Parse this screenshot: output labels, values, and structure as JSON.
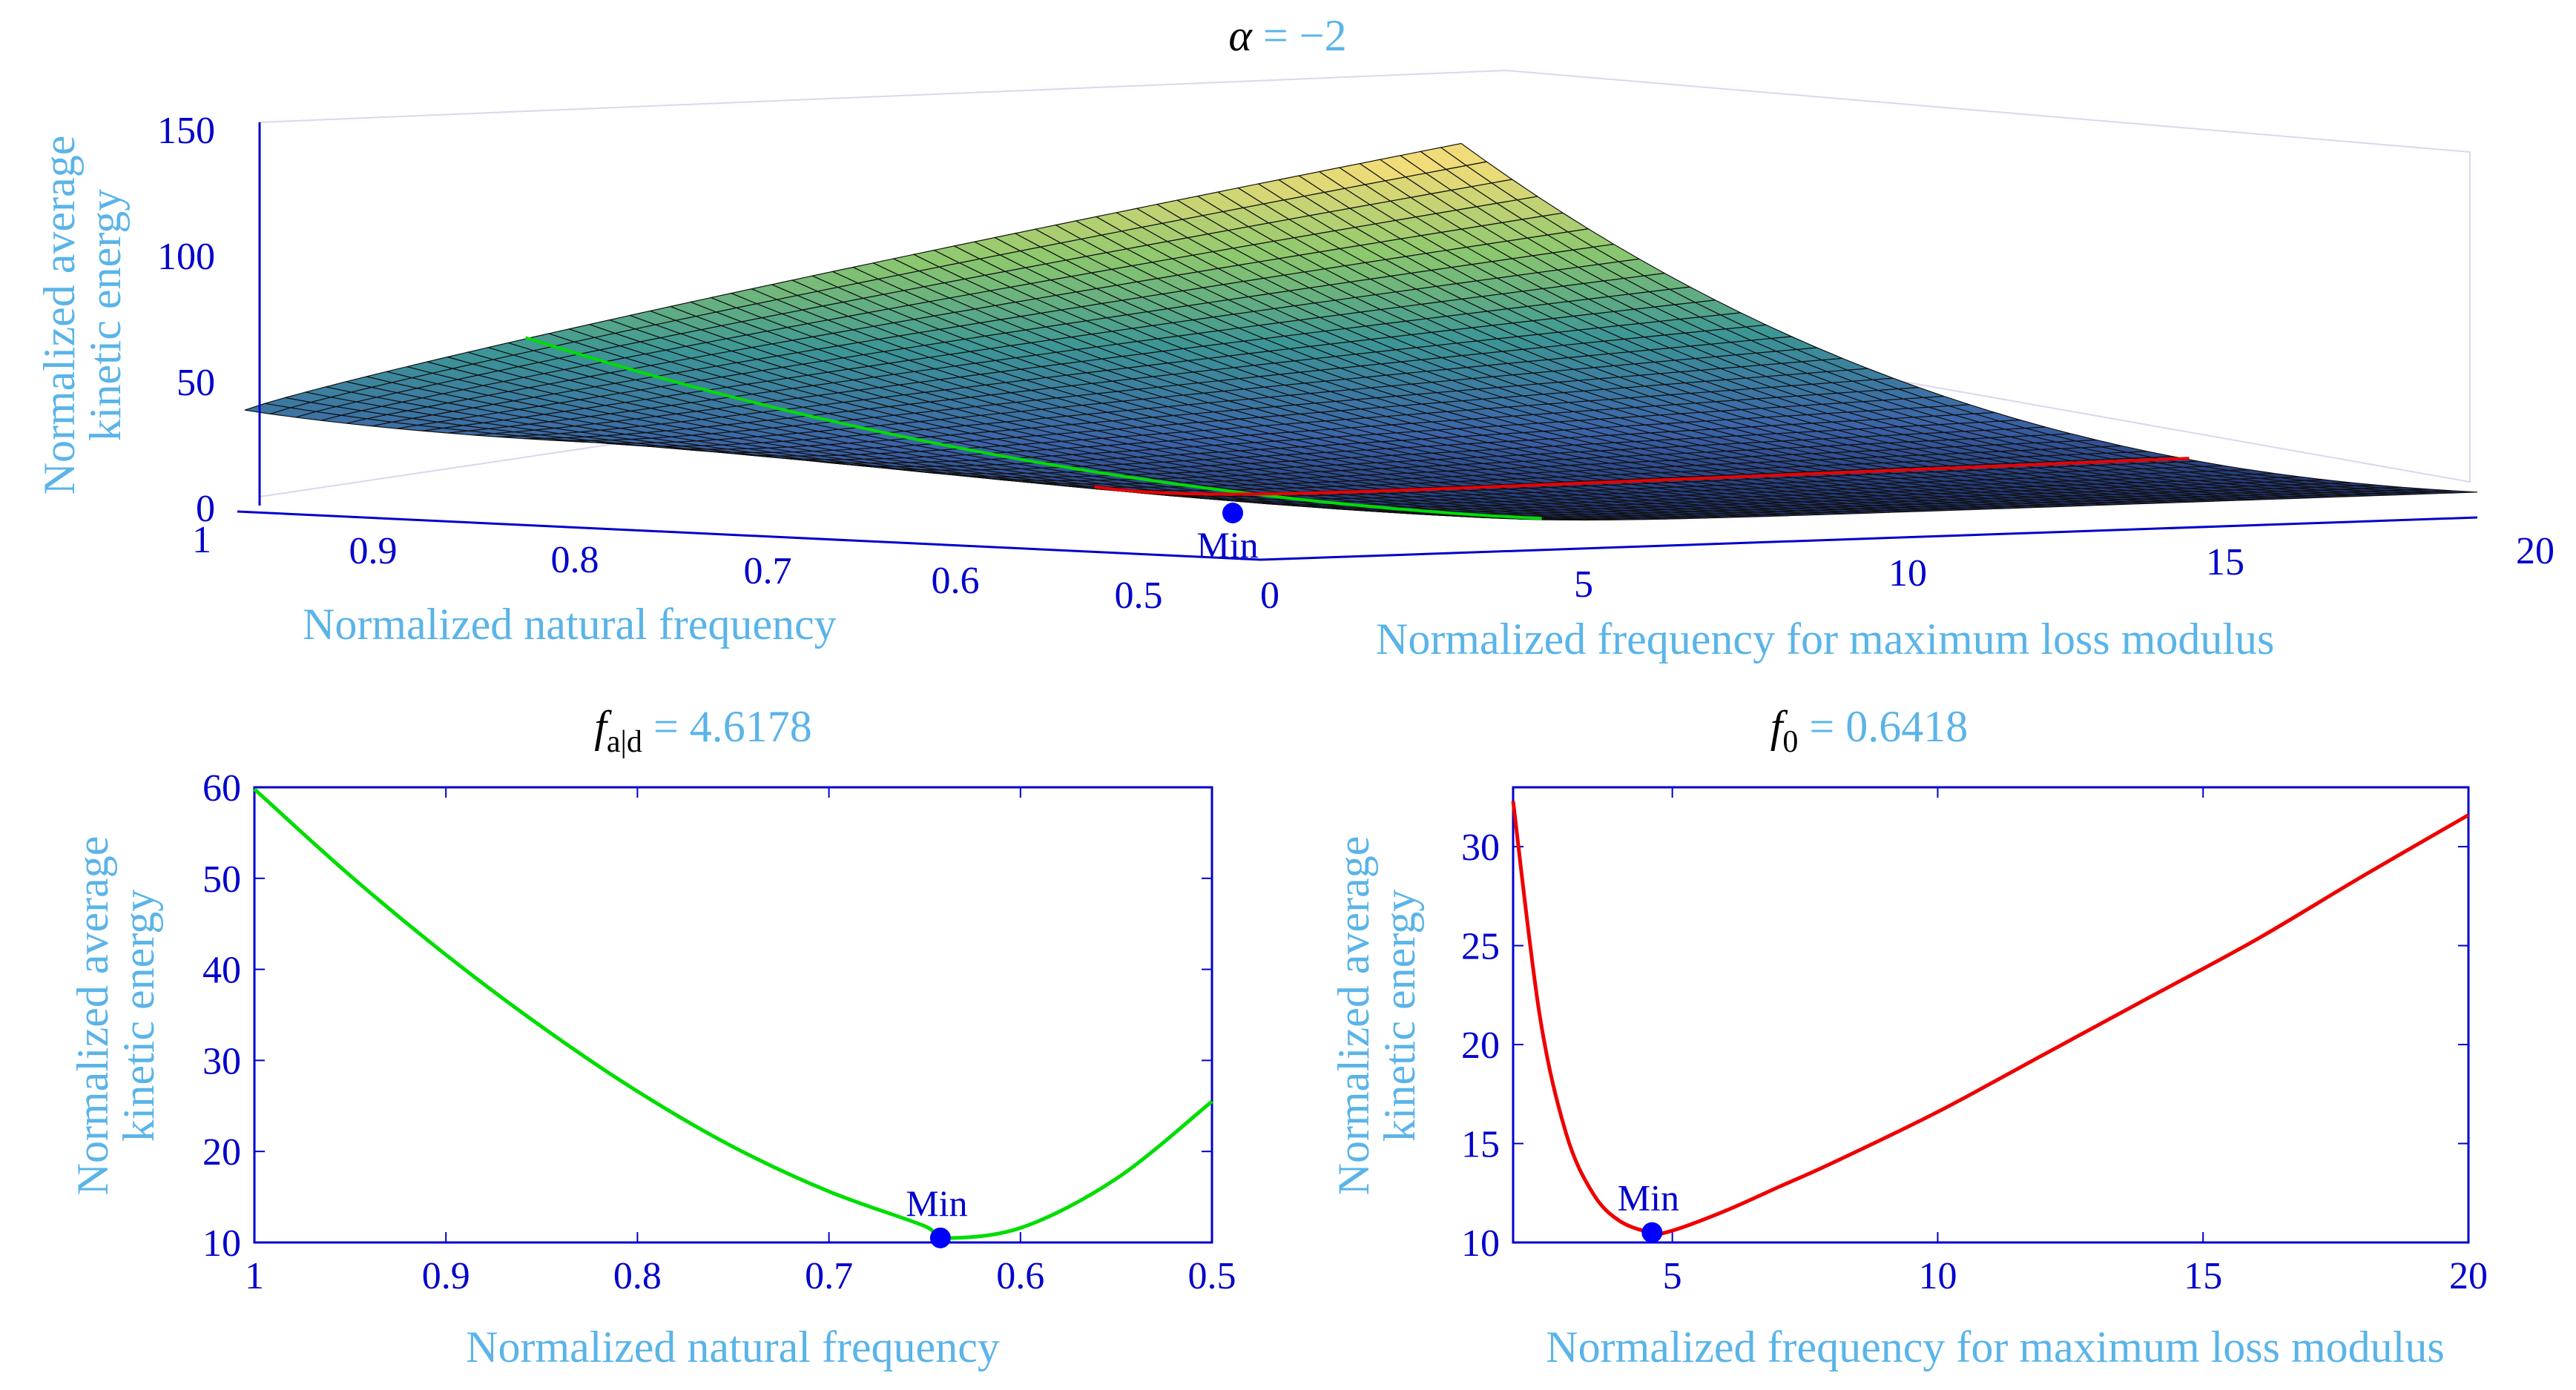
{
  "colors": {
    "axis": "#0000cc",
    "label": "#5ab4e8",
    "title": "#000000",
    "green": "#00dd00",
    "red": "#ee0000",
    "marker": "#0000ff",
    "grid": "#d8d8ee"
  },
  "chart_data": [
    {
      "type": "surface",
      "title_symbol": "α",
      "title_value": " = −2",
      "zlabel_line1": "Normalized average",
      "zlabel_line2": "kinetic energy",
      "xlabel": "Normalized natural frequency",
      "ylabel": "Normalized frequency for maximum loss modulus",
      "zlim": [
        0,
        150
      ],
      "z_ticks": [
        "0",
        "50",
        "100",
        "150"
      ],
      "x_range": [
        1,
        0.5
      ],
      "x_ticks": [
        "1",
        "0.9",
        "0.8",
        "0.7",
        "0.6",
        "0.5"
      ],
      "y_range": [
        0,
        20
      ],
      "y_ticks": [
        "0",
        "5",
        "10",
        "15",
        "20"
      ],
      "min_label": "Min",
      "min_point": {
        "f0": 0.6418,
        "fad": 4.6178,
        "z": 10.5
      }
    },
    {
      "type": "line",
      "title_symbol": "f",
      "title_sub": "a|d",
      "title_value": " = 4.6178",
      "xlabel": "Normalized natural frequency",
      "ylabel_line1": "Normalized average",
      "ylabel_line2": "kinetic energy",
      "xlim": [
        1,
        0.5
      ],
      "ylim": [
        10,
        60
      ],
      "x_ticks": [
        "1",
        "0.9",
        "0.8",
        "0.7",
        "0.6",
        "0.5"
      ],
      "y_ticks": [
        "10",
        "20",
        "30",
        "40",
        "50",
        "60"
      ],
      "series": [
        {
          "name": "green",
          "x": [
            1.0,
            0.95,
            0.9,
            0.85,
            0.8,
            0.75,
            0.7,
            0.65,
            0.6418,
            0.6,
            0.55,
            0.5
          ],
          "y": [
            59.8,
            50.3,
            41.6,
            33.7,
            26.6,
            20.5,
            15.6,
            11.8,
            10.5,
            11.6,
            17.0,
            25.5
          ]
        }
      ],
      "min_label": "Min",
      "min_point": {
        "x": 0.6418,
        "y": 10.5
      }
    },
    {
      "type": "line",
      "title_symbol": "f",
      "title_sub": "0",
      "title_value": " = 0.6418",
      "xlabel": "Normalized frequency for maximum loss modulus",
      "ylabel_line1": "Normalized average",
      "ylabel_line2": "kinetic energy",
      "xlim": [
        2,
        20
      ],
      "ylim": [
        10,
        33
      ],
      "x_ticks": [
        "5",
        "10",
        "15",
        "20"
      ],
      "y_ticks": [
        "10",
        "15",
        "20",
        "25",
        "30"
      ],
      "series": [
        {
          "name": "red",
          "x": [
            2.0,
            2.5,
            3.0,
            3.5,
            4.0,
            4.6178,
            5.0,
            6.0,
            7.0,
            8.0,
            10.0,
            12.0,
            14.0,
            16.0,
            18.0,
            20.0
          ],
          "y": [
            32.3,
            21.5,
            15.5,
            12.5,
            11.1,
            10.5,
            10.6,
            11.6,
            12.8,
            14.0,
            16.6,
            19.5,
            22.4,
            25.3,
            28.5,
            31.6
          ]
        }
      ],
      "min_label": "Min",
      "min_point": {
        "x": 4.6178,
        "y": 10.5
      }
    }
  ]
}
